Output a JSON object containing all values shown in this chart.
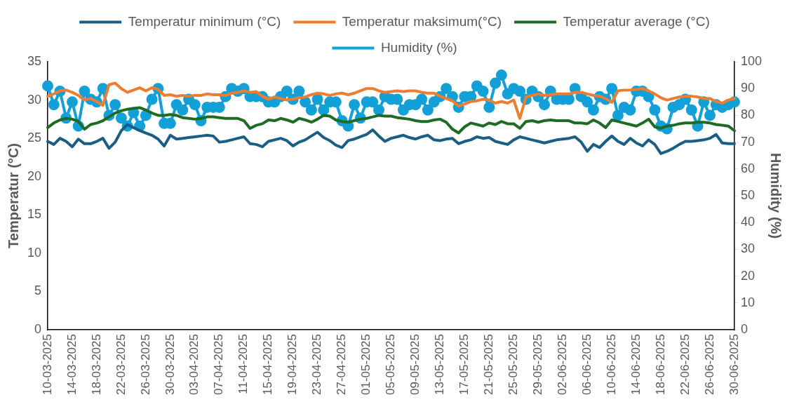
{
  "chart_data": {
    "type": "line",
    "ylabel": "Temperatur (°C)",
    "y2label": "Humidity (%)",
    "legend": "top",
    "marker": "none",
    "line_style": "solid",
    "grid": false,
    "ylim": [
      0,
      35
    ],
    "yticks": [
      0,
      5,
      10,
      15,
      20,
      25,
      30,
      35
    ],
    "y2lim": [
      0,
      100
    ],
    "y2ticks": [
      0,
      10,
      20,
      30,
      40,
      50,
      60,
      70,
      80,
      90,
      100
    ],
    "categories": [
      "10-03-2025",
      null,
      null,
      null,
      "14-03-2025",
      null,
      null,
      null,
      "18-03-2025",
      null,
      null,
      null,
      "22-03-2025",
      null,
      null,
      null,
      "26-03-2025",
      null,
      null,
      null,
      "30-03-2025",
      null,
      null,
      null,
      "03-04-2025",
      null,
      null,
      null,
      "07-04-2025",
      null,
      null,
      null,
      "11-04-2025",
      null,
      null,
      null,
      "15-04-2025",
      null,
      null,
      null,
      "19-04-2025",
      null,
      null,
      null,
      "23-04-2025",
      null,
      null,
      null,
      "27-04-2025",
      null,
      null,
      null,
      "01-05-2025",
      null,
      null,
      null,
      "05-05-2025",
      null,
      null,
      null,
      "09-05-2025",
      null,
      null,
      null,
      "13-05-2025",
      null,
      null,
      null,
      "17-05-2025",
      null,
      null,
      null,
      "21-05-2025",
      null,
      null,
      null,
      "25-05-2025",
      null,
      null,
      null,
      "29-05-2025",
      null,
      null,
      null,
      "02-06-2025",
      null,
      null,
      null,
      "06-06-2025",
      null,
      null,
      null,
      "10-06-2025",
      null,
      null,
      null,
      "14-06-2025",
      null,
      null,
      null,
      "18-06-2025",
      null,
      null,
      null,
      "22-06-2025",
      null,
      null,
      null,
      "26-06-2025",
      null,
      null,
      null,
      "30-06-2025"
    ],
    "series": [
      {
        "name": "Temperatur minimum (°C)",
        "color": "#1a5e85",
        "values": [
          24.6,
          24.2,
          25.0,
          24.6,
          23.9,
          24.9,
          24.3,
          24.3,
          24.6,
          25.0,
          23.7,
          24.5,
          26.0,
          26.8,
          26.4,
          26.0,
          25.7,
          25.4,
          24.9,
          24.0,
          25.4,
          24.9,
          25.0,
          25.1,
          25.2,
          25.3,
          25.4,
          25.3,
          24.5,
          24.6,
          24.8,
          25.0,
          25.2,
          24.3,
          24.2,
          23.9,
          24.6,
          24.8,
          25.0,
          24.7,
          24.0,
          24.5,
          24.8,
          25.3,
          25.8,
          25.1,
          24.7,
          24.1,
          23.8,
          24.7,
          24.9,
          25.2,
          25.5,
          26.1,
          25.3,
          24.6,
          25.0,
          25.2,
          25.4,
          25.1,
          24.9,
          25.2,
          25.4,
          24.8,
          24.7,
          24.9,
          25.0,
          24.3,
          24.6,
          24.8,
          25.2,
          25.0,
          25.1,
          24.6,
          24.4,
          24.2,
          24.8,
          25.2,
          25.0,
          24.8,
          24.6,
          24.4,
          24.6,
          24.8,
          24.9,
          25.0,
          25.2,
          24.5,
          23.3,
          24.2,
          23.8,
          24.6,
          25.3,
          24.6,
          24.2,
          25.0,
          24.4,
          24.0,
          24.8,
          24.2,
          23.0,
          23.3,
          23.7,
          24.2,
          24.6,
          24.6,
          24.7,
          24.8,
          25.0,
          25.5,
          24.4,
          24.3,
          24.3
        ]
      },
      {
        "name": "Temperatur maksimum(°C)",
        "color": "#ed7d31",
        "values": [
          30.5,
          30.8,
          31.2,
          31.3,
          31.0,
          30.6,
          30.0,
          30.2,
          29.8,
          29.3,
          32.0,
          32.2,
          31.5,
          31.0,
          31.3,
          31.6,
          31.2,
          31.6,
          31.4,
          30.6,
          30.7,
          30.5,
          30.6,
          30.5,
          30.6,
          30.6,
          30.8,
          30.7,
          30.7,
          30.6,
          30.9,
          31.0,
          31.2,
          31.0,
          31.1,
          30.5,
          30.1,
          30.4,
          30.2,
          30.0,
          30.1,
          30.3,
          30.4,
          30.7,
          30.9,
          30.8,
          30.6,
          30.8,
          30.9,
          30.7,
          30.9,
          31.2,
          31.5,
          31.5,
          31.2,
          31.0,
          31.1,
          31.2,
          31.1,
          31.2,
          31.2,
          31.0,
          30.9,
          30.9,
          30.5,
          30.2,
          29.9,
          29.2,
          29.5,
          29.8,
          29.9,
          30.1,
          30.0,
          29.6,
          29.8,
          29.6,
          30.0,
          27.6,
          30.4,
          30.6,
          30.8,
          30.6,
          30.7,
          30.8,
          30.8,
          30.8,
          31.0,
          31.0,
          30.8,
          30.6,
          30.5,
          30.2,
          29.7,
          31.2,
          31.3,
          31.3,
          31.4,
          31.5,
          31.2,
          30.8,
          30.3,
          30.0,
          30.2,
          30.4,
          30.5,
          30.5,
          30.4,
          30.2,
          30.2,
          29.8,
          29.6,
          30.0,
          30.2
        ]
      },
      {
        "name": "Temperatur average (°C)",
        "color": "#1e6b24",
        "values": [
          26.4,
          27.0,
          27.4,
          27.6,
          27.5,
          27.2,
          26.2,
          26.8,
          27.0,
          27.3,
          27.8,
          28.3,
          28.6,
          28.8,
          28.9,
          29.0,
          28.7,
          28.3,
          28.0,
          28.0,
          28.1,
          28.0,
          27.7,
          27.6,
          27.5,
          27.6,
          27.8,
          27.8,
          27.7,
          27.6,
          27.6,
          27.6,
          27.3,
          26.3,
          26.7,
          26.9,
          27.4,
          27.3,
          27.6,
          27.4,
          27.1,
          27.6,
          27.4,
          27.1,
          27.5,
          28.0,
          27.9,
          27.4,
          27.2,
          27.1,
          27.3,
          27.5,
          27.6,
          27.8,
          28.0,
          27.9,
          27.9,
          27.7,
          27.6,
          27.5,
          27.3,
          27.2,
          27.2,
          27.4,
          27.5,
          27.1,
          26.2,
          25.7,
          26.5,
          27.0,
          26.8,
          26.6,
          27.0,
          26.8,
          27.2,
          26.9,
          26.9,
          26.3,
          27.2,
          27.3,
          27.1,
          27.3,
          27.4,
          27.3,
          27.3,
          27.3,
          27.0,
          27.0,
          26.9,
          27.4,
          27.0,
          26.4,
          27.4,
          27.2,
          27.0,
          26.8,
          26.6,
          27.0,
          27.5,
          26.5,
          26.3,
          26.6,
          26.7,
          26.9,
          27.0,
          27.0,
          27.1,
          27.1,
          27.0,
          26.8,
          26.7,
          26.6,
          26.0
        ]
      },
      {
        "name": "Humidity (%)",
        "color": "#12a0d7",
        "axis": "y2",
        "marker": "circle",
        "values": [
          91,
          84,
          89,
          79,
          85,
          76,
          89,
          86,
          85,
          90,
          80,
          84,
          79,
          76,
          81,
          76,
          80,
          86,
          90,
          77,
          77,
          84,
          82,
          86,
          84,
          78,
          83,
          83,
          83,
          87,
          90,
          89,
          90,
          87,
          87,
          87,
          85,
          85,
          87,
          89,
          86,
          89,
          85,
          82,
          86,
          82,
          85,
          85,
          78,
          76,
          84,
          79,
          85,
          85,
          82,
          87,
          86,
          86,
          82,
          84,
          84,
          86,
          82,
          85,
          87,
          90,
          87,
          83,
          87,
          87,
          91,
          89,
          83,
          92,
          95,
          88,
          90,
          89,
          86,
          89,
          87,
          84,
          89,
          86,
          86,
          86,
          90,
          87,
          85,
          82,
          87,
          86,
          90,
          80,
          83,
          82,
          89,
          89,
          87,
          82,
          76,
          75,
          83,
          84,
          86,
          82,
          76,
          85,
          80,
          84,
          83,
          84,
          85
        ]
      }
    ]
  }
}
